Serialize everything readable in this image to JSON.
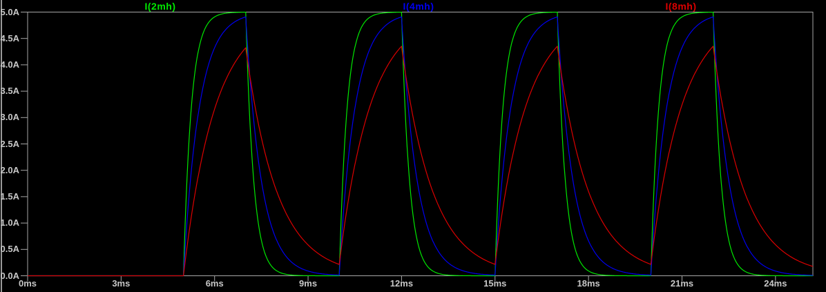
{
  "window": {
    "title": "LTspice waveform viewer pane",
    "background_color": "#000000",
    "edge_color": "#9a9a9a",
    "axis_color": "#a8a8a8",
    "tick_text_color": "#c8c8c8"
  },
  "chart_data": {
    "type": "line",
    "title": "",
    "x_axis": {
      "unit": "ms",
      "range_ms": [
        0,
        25.2
      ],
      "tick_labels": [
        "0ms",
        "3ms",
        "6ms",
        "9ms",
        "12ms",
        "15ms",
        "18ms",
        "21ms",
        "24ms"
      ],
      "tick_values_ms": [
        0,
        3,
        6,
        9,
        12,
        15,
        18,
        21,
        24
      ],
      "grid": false
    },
    "y_axis": {
      "unit": "A",
      "range_A": [
        0,
        5
      ],
      "tick_labels": [
        "5.0A",
        "4.5A",
        "4.0A",
        "3.5A",
        "3.0A",
        "2.5A",
        "2.0A",
        "1.5A",
        "1.0A",
        "0.5A",
        "0.0A"
      ],
      "tick_values_A": [
        5,
        4.5,
        4,
        3.5,
        3,
        2.5,
        2,
        1.5,
        1,
        0.5,
        0
      ],
      "grid": false
    },
    "legend": {
      "position": "top",
      "entries": [
        {
          "label": "I(2mh)",
          "color": "#00e800"
        },
        {
          "label": "I(4mh)",
          "color": "#0000f0"
        },
        {
          "label": "I(8mh)",
          "color": "#dc0000"
        }
      ]
    },
    "excitation": {
      "description": "repetitive square-wave drive, RL charge/discharge",
      "first_pulse_start_ms": 5,
      "period_ms": 5,
      "on_time_ms": 2,
      "pulse_count": 4,
      "steady_state_current_A": 5
    },
    "series": [
      {
        "name": "I(2mh)",
        "color": "#00e800",
        "tau_ms": 0.25,
        "peaks_A": [
          5.0,
          5.0,
          5.0,
          5.0
        ],
        "valleys_A_before_next_pulse": [
          0.0,
          0.0,
          0.0,
          0.0
        ]
      },
      {
        "name": "I(4mh)",
        "color": "#0000f0",
        "tau_ms": 0.5,
        "peaks_A": [
          4.91,
          4.91,
          4.91,
          4.91
        ],
        "valleys_A_before_next_pulse": [
          0.01,
          0.01,
          0.01,
          0.01
        ]
      },
      {
        "name": "I(8mh)",
        "color": "#dc0000",
        "tau_ms": 1.0,
        "peaks_A": [
          4.32,
          4.35,
          4.35,
          4.35
        ],
        "valleys_A_before_next_pulse": [
          0.22,
          0.22,
          0.22,
          0.22
        ]
      }
    ]
  }
}
